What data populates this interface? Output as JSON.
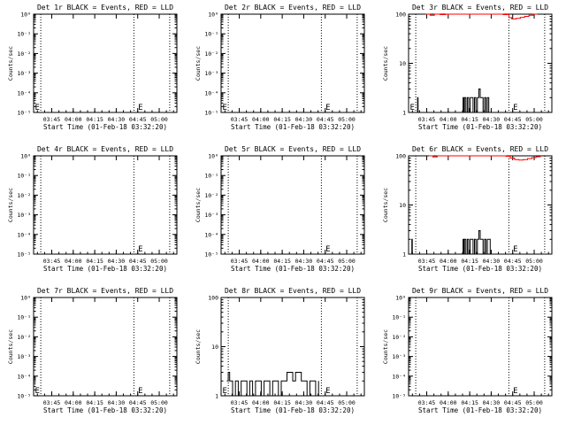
{
  "figure": {
    "background": "#ffffff",
    "events_color": "#000000",
    "lld_color": "#ff0000"
  },
  "chart_data": [
    {
      "type": "line",
      "title": "Det 1r BLACK = Events, RED = LLD",
      "xlabel": "Start Time (01-Feb-18 03:32:20)",
      "ylabel": "Counts/sec",
      "x_ticks": [
        "03:45",
        "04:00",
        "04:15",
        "04:30",
        "04:45",
        "05:00"
      ],
      "x_tick_positions_min": [
        12.67,
        27.67,
        42.67,
        57.67,
        72.67,
        87.67
      ],
      "xlim_min": [
        0,
        100
      ],
      "y_scale": "log",
      "y_ticks": [
        "10⁰",
        "10⁻¹",
        "10⁻²",
        "10⁻³",
        "10⁻⁴",
        "10⁻⁵"
      ],
      "y_tick_values": [
        1,
        0.1,
        0.01,
        0.001,
        0.0001,
        1e-05
      ],
      "ylim": [
        1e-05,
        1
      ],
      "vlines_min": [
        5,
        70,
        95
      ],
      "markers": [
        {
          "label": "E",
          "x_min": 0
        },
        {
          "label": "E",
          "x_min": 72
        }
      ],
      "series": []
    },
    {
      "type": "line",
      "title": "Det 2r BLACK = Events, RED = LLD",
      "xlabel": "Start Time (01-Feb-18 03:32:20)",
      "ylabel": "Counts/sec",
      "x_ticks": [
        "03:45",
        "04:00",
        "04:15",
        "04:30",
        "04:45",
        "05:00"
      ],
      "x_tick_positions_min": [
        12.67,
        27.67,
        42.67,
        57.67,
        72.67,
        87.67
      ],
      "xlim_min": [
        0,
        100
      ],
      "y_scale": "log",
      "y_ticks": [
        "10⁰",
        "10⁻¹",
        "10⁻²",
        "10⁻³",
        "10⁻⁴",
        "10⁻⁵"
      ],
      "y_tick_values": [
        1,
        0.1,
        0.01,
        0.001,
        0.0001,
        1e-05
      ],
      "ylim": [
        1e-05,
        1
      ],
      "vlines_min": [
        5,
        70,
        95
      ],
      "markers": [
        {
          "label": "E",
          "x_min": 0
        },
        {
          "label": "E",
          "x_min": 72
        }
      ],
      "series": []
    },
    {
      "type": "line",
      "title": "Det 3r BLACK = Events, RED = LLD",
      "xlabel": "Start Time (01-Feb-18 03:32:20)",
      "ylabel": "Counts/sec",
      "x_ticks": [
        "03:45",
        "04:00",
        "04:15",
        "04:30",
        "04:45",
        "05:00"
      ],
      "x_tick_positions_min": [
        12.67,
        27.67,
        42.67,
        57.67,
        72.67,
        87.67
      ],
      "xlim_min": [
        0,
        100
      ],
      "y_scale": "log",
      "y_ticks": [
        "1",
        "10",
        "100"
      ],
      "y_tick_values": [
        1,
        10,
        100
      ],
      "ylim": [
        1,
        100
      ],
      "vlines_min": [
        5,
        70,
        95
      ],
      "markers": [
        {
          "label": "E",
          "x_min": 0
        },
        {
          "label": "E",
          "x_min": 72
        }
      ],
      "series": [
        {
          "color": "#000000",
          "x": [
            6,
            6.3,
            6.6,
            38,
            38.5,
            39,
            40,
            41,
            42,
            43,
            44,
            45,
            46,
            47,
            48,
            49,
            50,
            51,
            52,
            53,
            54,
            55,
            55.5,
            56
          ],
          "y": [
            1,
            2,
            1,
            2,
            1,
            2,
            1,
            2,
            1,
            2,
            2,
            1,
            2,
            1,
            2,
            3,
            2,
            2,
            1,
            2,
            1,
            2,
            2,
            1
          ]
        },
        {
          "color": "#ff0000",
          "x": [
            12,
            15,
            18,
            22,
            26,
            30,
            34,
            38,
            42,
            46,
            50,
            54,
            58,
            62,
            66,
            70,
            72,
            75,
            78,
            81,
            84,
            87,
            90
          ],
          "y": [
            100,
            95,
            100,
            98,
            100,
            100,
            100,
            100,
            100,
            100,
            100,
            100,
            100,
            100,
            98,
            85,
            80,
            82,
            86,
            90,
            95,
            100,
            100
          ]
        }
      ]
    },
    {
      "type": "line",
      "title": "Det 4r BLACK = Events, RED = LLD",
      "xlabel": "Start Time (01-Feb-18 03:32:20)",
      "ylabel": "Counts/sec",
      "x_ticks": [
        "03:45",
        "04:00",
        "04:15",
        "04:30",
        "04:45",
        "05:00"
      ],
      "x_tick_positions_min": [
        12.67,
        27.67,
        42.67,
        57.67,
        72.67,
        87.67
      ],
      "xlim_min": [
        0,
        100
      ],
      "y_scale": "log",
      "y_ticks": [
        "10⁰",
        "10⁻¹",
        "10⁻²",
        "10⁻³",
        "10⁻⁴",
        "10⁻⁵"
      ],
      "y_tick_values": [
        1,
        0.1,
        0.01,
        0.001,
        0.0001,
        1e-05
      ],
      "ylim": [
        1e-05,
        1
      ],
      "vlines_min": [
        5,
        70,
        95
      ],
      "markers": [
        {
          "label": "E",
          "x_min": 72
        }
      ],
      "series": []
    },
    {
      "type": "line",
      "title": "Det 5r BLACK = Events, RED = LLD",
      "xlabel": "Start Time (01-Feb-18 03:32:20)",
      "ylabel": "Counts/sec",
      "x_ticks": [
        "03:45",
        "04:00",
        "04:15",
        "04:30",
        "04:45",
        "05:00"
      ],
      "x_tick_positions_min": [
        12.67,
        27.67,
        42.67,
        57.67,
        72.67,
        87.67
      ],
      "xlim_min": [
        0,
        100
      ],
      "y_scale": "log",
      "y_ticks": [
        "10⁰",
        "10⁻¹",
        "10⁻²",
        "10⁻³",
        "10⁻⁴",
        "10⁻⁵"
      ],
      "y_tick_values": [
        1,
        0.1,
        0.01,
        0.001,
        0.0001,
        1e-05
      ],
      "ylim": [
        1e-05,
        1
      ],
      "vlines_min": [
        5,
        70,
        95
      ],
      "markers": [
        {
          "label": "E",
          "x_min": 72
        }
      ],
      "series": []
    },
    {
      "type": "line",
      "title": "Det 6r BLACK = Events, RED = LLD",
      "xlabel": "Start Time (01-Feb-18 03:32:20)",
      "ylabel": "Counts/sec",
      "x_ticks": [
        "03:45",
        "04:00",
        "04:15",
        "04:30",
        "04:45",
        "05:00"
      ],
      "x_tick_positions_min": [
        12.67,
        27.67,
        42.67,
        57.67,
        72.67,
        87.67
      ],
      "xlim_min": [
        0,
        100
      ],
      "y_scale": "log",
      "y_ticks": [
        "1",
        "10",
        "100"
      ],
      "y_tick_values": [
        1,
        10,
        100
      ],
      "ylim": [
        1,
        100
      ],
      "vlines_min": [
        5,
        70,
        95
      ],
      "markers": [
        {
          "label": "E",
          "x_min": 72
        }
      ],
      "series": [
        {
          "color": "#000000",
          "x": [
            2,
            2.3,
            2.6,
            38,
            38.5,
            39,
            40,
            41,
            42,
            43,
            44,
            45,
            46,
            47,
            48,
            49,
            50,
            51,
            52,
            53,
            54,
            55,
            56,
            57
          ],
          "y": [
            1,
            2,
            1,
            2,
            1,
            2,
            1,
            2,
            1,
            2,
            2,
            1,
            2,
            1,
            2,
            3,
            2,
            2,
            1,
            2,
            1,
            2,
            2,
            1
          ]
        },
        {
          "color": "#ff0000",
          "x": [
            14,
            17,
            20,
            23,
            26,
            29,
            32,
            35,
            38,
            41,
            44,
            47,
            50,
            53,
            56,
            59,
            62,
            65,
            68,
            71,
            74,
            77,
            80,
            83,
            86,
            89,
            92
          ],
          "y": [
            100,
            95,
            100,
            100,
            100,
            100,
            100,
            100,
            100,
            100,
            100,
            100,
            100,
            100,
            100,
            100,
            100,
            100,
            98,
            90,
            84,
            82,
            84,
            88,
            92,
            96,
            100
          ]
        }
      ]
    },
    {
      "type": "line",
      "title": "Det 7r BLACK = Events, RED = LLD",
      "xlabel": "Start Time (01-Feb-18 03:32:20)",
      "ylabel": "Counts/sec",
      "x_ticks": [
        "03:45",
        "04:00",
        "04:15",
        "04:30",
        "04:45",
        "05:00"
      ],
      "x_tick_positions_min": [
        12.67,
        27.67,
        42.67,
        57.67,
        72.67,
        87.67
      ],
      "xlim_min": [
        0,
        100
      ],
      "y_scale": "log",
      "y_ticks": [
        "10⁰",
        "10⁻¹",
        "10⁻²",
        "10⁻³",
        "10⁻⁴",
        "10⁻⁵"
      ],
      "y_tick_values": [
        1,
        0.1,
        0.01,
        0.001,
        0.0001,
        1e-05
      ],
      "ylim": [
        1e-05,
        1
      ],
      "vlines_min": [
        5,
        70,
        95
      ],
      "markers": [
        {
          "label": "E",
          "x_min": 0
        },
        {
          "label": "E",
          "x_min": 72
        }
      ],
      "series": []
    },
    {
      "type": "line",
      "title": "Det 8r BLACK = Events, RED = LLD",
      "xlabel": "Start Time (01-Feb-18 03:32:20)",
      "ylabel": "Counts/sec",
      "x_ticks": [
        "03:45",
        "04:00",
        "04:15",
        "04:30",
        "04:45",
        "05:00"
      ],
      "x_tick_positions_min": [
        12.67,
        27.67,
        42.67,
        57.67,
        72.67,
        87.67
      ],
      "xlim_min": [
        0,
        100
      ],
      "y_scale": "log",
      "y_ticks": [
        "1",
        "10",
        "100"
      ],
      "y_tick_values": [
        1,
        10,
        100
      ],
      "ylim": [
        1,
        100
      ],
      "vlines_min": [
        5,
        70,
        95
      ],
      "markers": [
        {
          "label": "E",
          "x_min": 0
        },
        {
          "label": "E",
          "x_min": 72
        }
      ],
      "series": [
        {
          "color": "#000000",
          "x": [
            4,
            5,
            6,
            8,
            10,
            12,
            14,
            16,
            18,
            20,
            22,
            24,
            26,
            28,
            30,
            32,
            34,
            36,
            38,
            40,
            42,
            44,
            46,
            48,
            50,
            52,
            54,
            56,
            58,
            60,
            62,
            64,
            66,
            68
          ],
          "y": [
            2,
            3,
            2,
            1,
            2,
            1,
            2,
            2,
            1,
            2,
            1,
            2,
            2,
            1,
            2,
            2,
            1,
            2,
            2,
            1,
            2,
            2,
            3,
            3,
            2,
            3,
            3,
            2,
            2,
            1,
            2,
            2,
            1,
            2
          ]
        }
      ]
    },
    {
      "type": "line",
      "title": "Det 9r BLACK = Events, RED = LLD",
      "xlabel": "Start Time (01-Feb-18 03:32:20)",
      "ylabel": "Counts/sec",
      "x_ticks": [
        "03:45",
        "04:00",
        "04:15",
        "04:30",
        "04:45",
        "05:00"
      ],
      "x_tick_positions_min": [
        12.67,
        27.67,
        42.67,
        57.67,
        72.67,
        87.67
      ],
      "xlim_min": [
        0,
        100
      ],
      "y_scale": "log",
      "y_ticks": [
        "10⁰",
        "10⁻¹",
        "10⁻²",
        "10⁻³",
        "10⁻⁴",
        "10⁻⁵"
      ],
      "y_tick_values": [
        1,
        0.1,
        0.01,
        0.001,
        0.0001,
        1e-05
      ],
      "ylim": [
        1e-05,
        1
      ],
      "vlines_min": [
        5,
        70,
        95
      ],
      "markers": [
        {
          "label": "E",
          "x_min": 72
        }
      ],
      "series": []
    }
  ]
}
